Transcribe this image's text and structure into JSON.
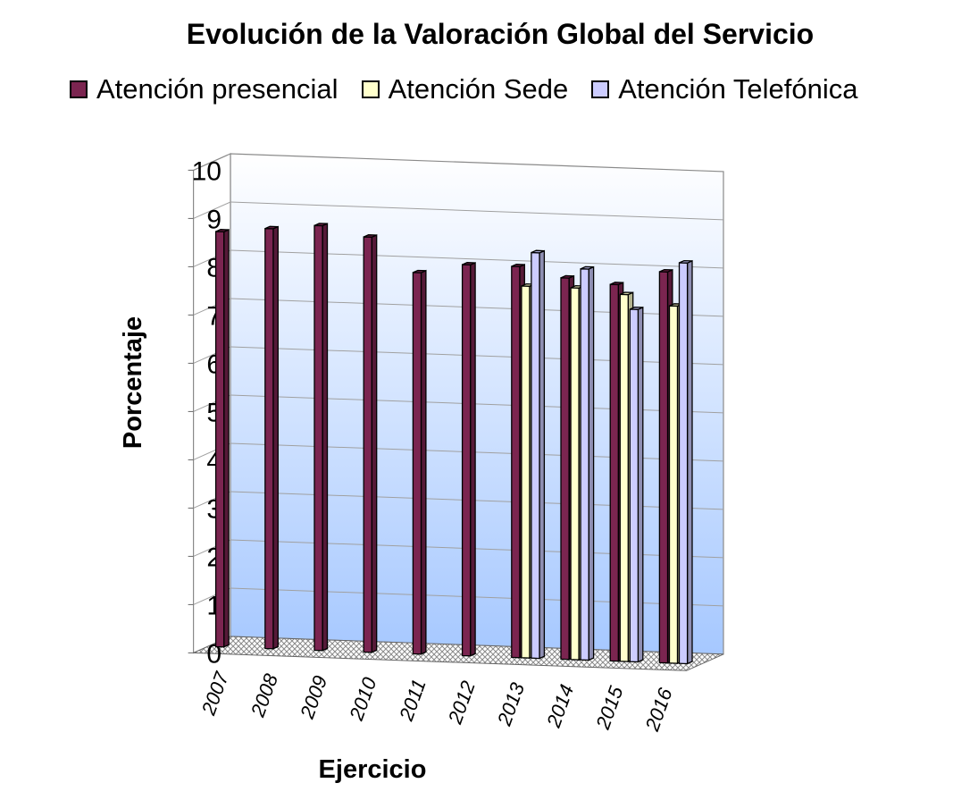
{
  "chart_data": {
    "type": "bar",
    "title": "Evolución de la Valoración Global del Servicio",
    "xlabel": "Ejercicio",
    "ylabel": "Porcentaje",
    "categories": [
      "2007",
      "2008",
      "2009",
      "2010",
      "2011",
      "2012",
      "2013",
      "2014",
      "2015",
      "2016"
    ],
    "y_ticks": [
      "0",
      "1",
      "2",
      "3",
      "4",
      "5",
      "6",
      "7",
      "8",
      "9",
      "10"
    ],
    "ylim": [
      0,
      10
    ],
    "grid": true,
    "legend_position": "top",
    "style": "3d",
    "series": [
      {
        "name": "Atención presencial",
        "color": "#7b2550",
        "values": [
          8.6,
          8.7,
          8.8,
          8.6,
          7.9,
          8.1,
          8.1,
          7.9,
          7.8,
          8.1
        ]
      },
      {
        "name": "Atención Sede",
        "color": "#ffffcc",
        "values": [
          null,
          null,
          null,
          null,
          null,
          null,
          7.7,
          7.7,
          7.6,
          7.4
        ]
      },
      {
        "name": "Atención Telefónica",
        "color": "#ccccff",
        "values": [
          null,
          null,
          null,
          null,
          null,
          null,
          8.4,
          8.1,
          7.3,
          8.3
        ]
      }
    ]
  }
}
